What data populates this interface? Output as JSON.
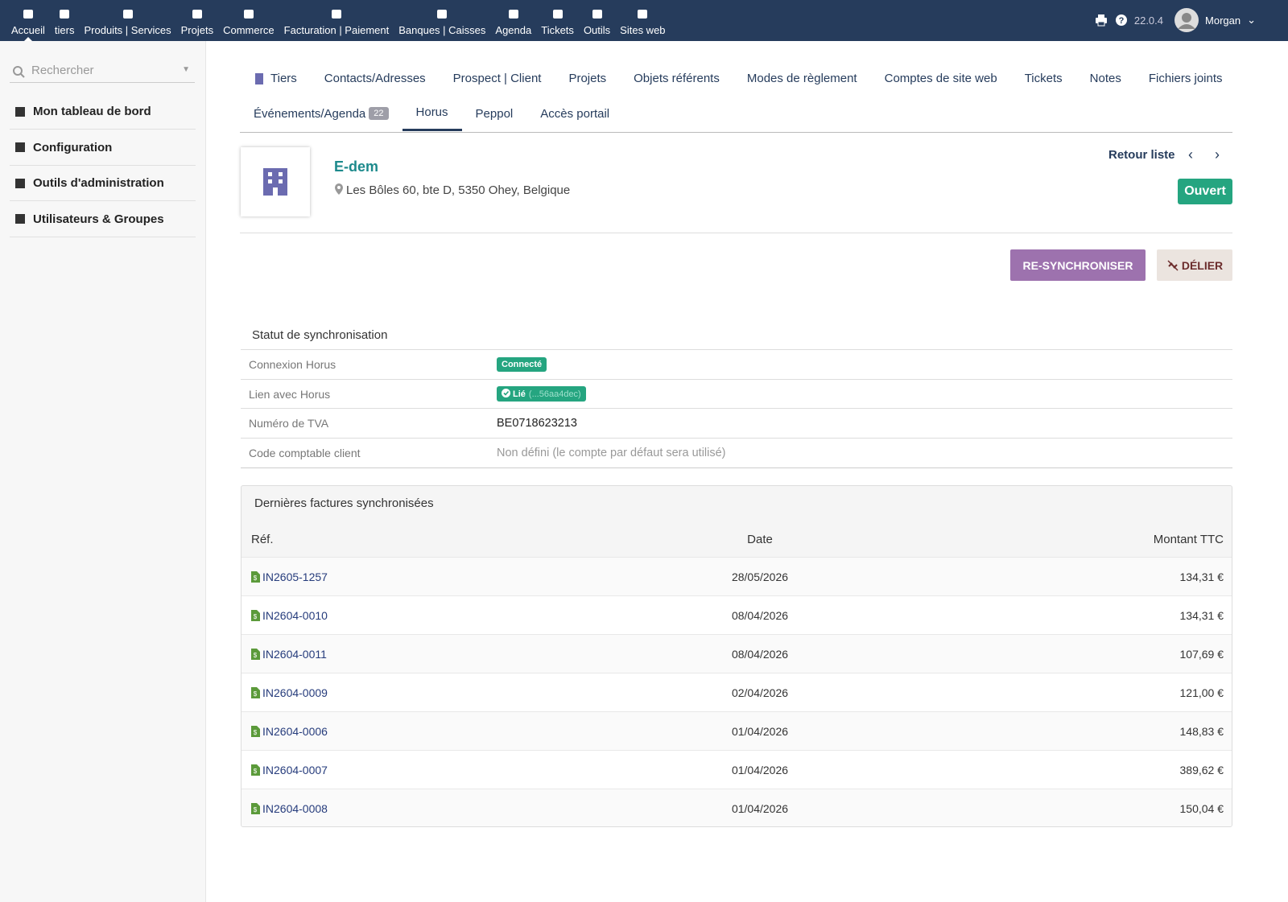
{
  "topnav": {
    "items": [
      "Accueil",
      "tiers",
      "Produits | Services",
      "Projets",
      "Commerce",
      "Facturation | Paiement",
      "Banques | Caisses",
      "Agenda",
      "Tickets",
      "Outils",
      "Sites web"
    ],
    "version": "22.0.4",
    "user": "Morgan"
  },
  "sidebar": {
    "search": "Rechercher",
    "items": [
      "Mon tableau de bord",
      "Configuration",
      "Outils d'administration",
      "Utilisateurs & Groupes"
    ]
  },
  "tabs": {
    "row1": [
      "Tiers",
      "Contacts/Adresses",
      "Prospect | Client",
      "Projets",
      "Objets référents",
      "Modes de règlement",
      "Comptes de site web",
      "Tickets",
      "Notes",
      "Fichiers joints"
    ],
    "row2": [
      {
        "label": "Événements/Agenda",
        "badge": 22
      },
      {
        "label": "Horus"
      },
      {
        "label": "Peppol"
      },
      {
        "label": "Accès portail"
      }
    ]
  },
  "header": {
    "name": "E-dem",
    "address": "Les Bôles 60, bte D, 5350 Ohey, Belgique",
    "back": "Retour liste",
    "status": "Ouvert"
  },
  "actions": [
    "RE-SYNCHRONISER",
    "DÉLIER"
  ],
  "sync_status": {
    "title": "Statut de synchronisation",
    "rows": [
      {
        "label": "Connexion Horus",
        "value": "Connecté"
      },
      {
        "label": "Lien avec Horus",
        "value": "Lié",
        "detail": "(...56aa4dec)"
      },
      {
        "label": "Numéro de TVA",
        "value": "BE0718623213"
      },
      {
        "label": "Code comptable client",
        "value": "Non défini (le compte par défaut sera utilisé)"
      }
    ]
  },
  "invoices": {
    "title": "Dernières factures synchronisées",
    "columns": [
      "Réf.",
      "Date",
      "Montant TTC"
    ],
    "rows": [
      [
        "IN2605-1257",
        "28/05/2026",
        "134,31 €"
      ],
      [
        "IN2604-0010",
        "08/04/2026",
        "134,31 €"
      ],
      [
        "IN2604-0011",
        "08/04/2026",
        "107,69 €"
      ],
      [
        "IN2604-0009",
        "02/04/2026",
        "121,00 €"
      ],
      [
        "IN2604-0006",
        "01/04/2026",
        "148,83 €"
      ],
      [
        "IN2604-0007",
        "01/04/2026",
        "389,62 €"
      ],
      [
        "IN2604-0008",
        "01/04/2026",
        "150,04 €"
      ]
    ]
  }
}
